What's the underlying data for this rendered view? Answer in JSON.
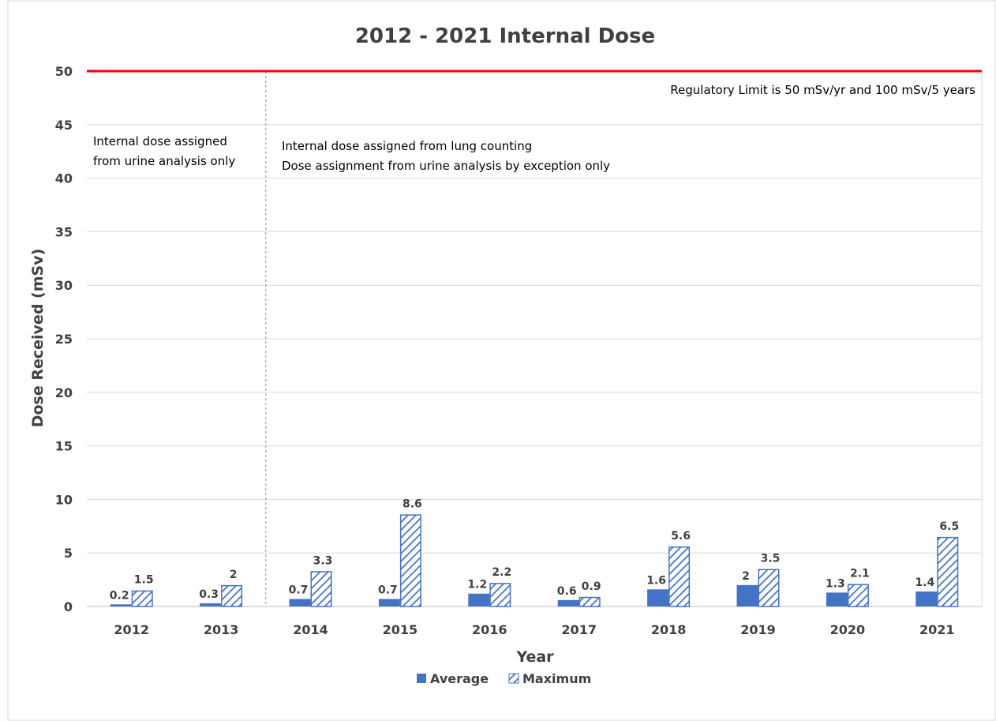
{
  "chart_data": {
    "type": "bar",
    "title": "2012 - 2021 Internal Dose",
    "xlabel": "Year",
    "ylabel": "Dose Received (mSv)",
    "ylim": [
      0,
      50
    ],
    "yticks": [
      0,
      5,
      10,
      15,
      20,
      25,
      30,
      35,
      40,
      45,
      50
    ],
    "grid": true,
    "legend_position": "bottom",
    "categories": [
      "2012",
      "2013",
      "2014",
      "2015",
      "2016",
      "2017",
      "2018",
      "2019",
      "2020",
      "2021"
    ],
    "series": [
      {
        "name": "Average",
        "style": "solid",
        "color": "#4472c4",
        "values": [
          0.2,
          0.3,
          0.7,
          0.7,
          1.2,
          0.6,
          1.6,
          2,
          1.3,
          1.4
        ]
      },
      {
        "name": "Maximum",
        "style": "hatched",
        "color": "#4472c4",
        "values": [
          1.5,
          2,
          3.3,
          8.6,
          2.2,
          0.9,
          5.6,
          3.5,
          2.1,
          6.5
        ]
      }
    ],
    "limit_line": {
      "value": 50,
      "color": "#ff0000"
    },
    "annotations": {
      "limit_note": "Regulatory Limit is 50 mSv/yr and 100 mSv/5 years",
      "left_region": [
        "Internal dose assigned",
        "from urine analysis only"
      ],
      "right_region": [
        "Internal dose assigned from lung counting",
        "Dose assignment from urine analysis by exception only"
      ]
    },
    "divider_after_category": "2013"
  }
}
